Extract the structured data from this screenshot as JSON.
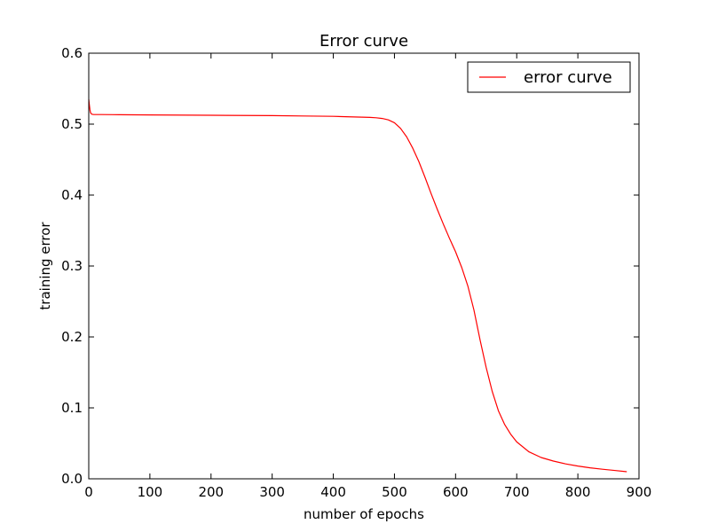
{
  "chart_data": {
    "type": "line",
    "title": "Error curve",
    "xlabel": "number of epochs",
    "ylabel": "training error",
    "xlim": [
      0,
      900
    ],
    "ylim": [
      0.0,
      0.6
    ],
    "xticks": [
      0,
      100,
      200,
      300,
      400,
      500,
      600,
      700,
      800,
      900
    ],
    "xtick_labels": [
      "0",
      "100",
      "200",
      "300",
      "400",
      "500",
      "600",
      "700",
      "800",
      "900"
    ],
    "yticks": [
      0.0,
      0.1,
      0.2,
      0.3,
      0.4,
      0.5,
      0.6
    ],
    "ytick_labels": [
      "0.0",
      "0.1",
      "0.2",
      "0.3",
      "0.4",
      "0.5",
      "0.6"
    ],
    "grid": false,
    "legend_position": "top-right",
    "series": [
      {
        "name": "error curve",
        "color": "#ff0000",
        "x": [
          0,
          1,
          2,
          3,
          5,
          8,
          12,
          20,
          50,
          100,
          200,
          300,
          350,
          400,
          420,
          440,
          460,
          470,
          480,
          490,
          500,
          510,
          520,
          530,
          540,
          550,
          560,
          570,
          580,
          590,
          600,
          610,
          620,
          630,
          640,
          650,
          660,
          670,
          680,
          690,
          700,
          720,
          740,
          760,
          780,
          800,
          820,
          840,
          860,
          880
        ],
        "y": [
          0.535,
          0.527,
          0.52,
          0.516,
          0.514,
          0.5135,
          0.5135,
          0.5135,
          0.5133,
          0.513,
          0.5125,
          0.512,
          0.5115,
          0.511,
          0.5105,
          0.51,
          0.5095,
          0.509,
          0.508,
          0.506,
          0.502,
          0.494,
          0.482,
          0.466,
          0.447,
          0.425,
          0.402,
          0.38,
          0.359,
          0.339,
          0.32,
          0.298,
          0.272,
          0.238,
          0.196,
          0.157,
          0.123,
          0.096,
          0.077,
          0.063,
          0.052,
          0.038,
          0.03,
          0.025,
          0.021,
          0.018,
          0.0155,
          0.0135,
          0.0118,
          0.01
        ]
      }
    ]
  }
}
